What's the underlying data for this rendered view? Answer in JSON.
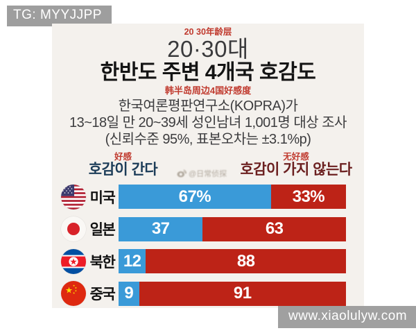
{
  "watermarks": {
    "top_left": "TG: MYYJJPP",
    "bottom_right": "www.xiaolulyw.com",
    "center": "@日常侦探"
  },
  "header": {
    "annotation_cn_top": "20 30年龄层",
    "age_group": "20·30대",
    "title": "한반도 주변 4개국 호감도",
    "annotation_cn_sub": "韩半岛周边4国好感度",
    "source_line1": "한국여론평판연구소(KOPRA)가",
    "source_line2": "13~18일 만 20~39세 성인남녀 1,001명 대상 조사",
    "source_line3": "(신뢰수준 95%, 표본오차는 ±3.1%p)"
  },
  "legend": {
    "favor_cn": "好感",
    "favor_kr": "호감이 간다",
    "unfavor_cn": "无好感",
    "unfavor_kr": "호감이 가지 않는다"
  },
  "colors": {
    "favor_bar": "#3a9ad8",
    "unfavor_bar": "#bd2317",
    "favor_legend_text": "#1c3c58",
    "unfavor_legend_text": "#6b1f1f",
    "cn_annotation": "#c03a2e",
    "badge_bg": "#989898",
    "panel_bg": "#f4f1ed"
  },
  "chart_data": {
    "type": "bar",
    "orientation": "horizontal_stacked",
    "title": "한반도 주변 4개국 호감도 (20·30대)",
    "unit": "%",
    "xlim": [
      0,
      100
    ],
    "categories": [
      "미국",
      "일본",
      "북한",
      "중국"
    ],
    "series": [
      {
        "name": "호감이 간다",
        "color": "#3a9ad8",
        "values": [
          67,
          37,
          12,
          9
        ]
      },
      {
        "name": "호감이 가지 않는다",
        "color": "#bd2317",
        "values": [
          33,
          63,
          88,
          91
        ]
      }
    ],
    "rows": [
      {
        "country": "미국",
        "flag": "us",
        "favor": 67,
        "unfavor": 33,
        "favor_label": "67%",
        "unfavor_label": "33%"
      },
      {
        "country": "일본",
        "flag": "japan",
        "favor": 37,
        "unfavor": 63,
        "favor_label": "37",
        "unfavor_label": "63"
      },
      {
        "country": "북한",
        "flag": "north-korea",
        "favor": 12,
        "unfavor": 88,
        "favor_label": "12",
        "unfavor_label": "88"
      },
      {
        "country": "중국",
        "flag": "china",
        "favor": 9,
        "unfavor": 91,
        "favor_label": "9",
        "unfavor_label": "91"
      }
    ]
  }
}
